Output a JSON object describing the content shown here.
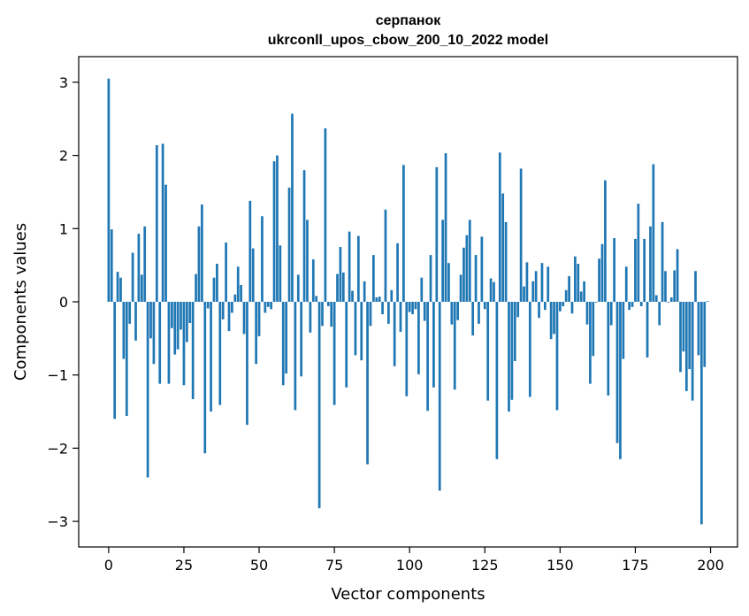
{
  "chart_data": {
    "type": "bar",
    "title_line1": "серпанок",
    "title_line2": "ukrconll_upos_cbow_200_10_2022 model",
    "xlabel": "Vector components",
    "ylabel": "Components values",
    "xlim": [
      -9.95,
      208.95
    ],
    "ylim": [
      -3.35,
      3.35
    ],
    "xticks": [
      0,
      25,
      50,
      75,
      100,
      125,
      150,
      175,
      200
    ],
    "yticks": [
      -3,
      -2,
      -1,
      0,
      1,
      2,
      3
    ],
    "ytick_labels": [
      "−3",
      "−2",
      "−1",
      "0",
      "1",
      "2",
      "3"
    ],
    "bar_color": "#1f77b4",
    "grid": false,
    "values": [
      3.05,
      0.99,
      -1.6,
      0.41,
      0.33,
      -0.78,
      -1.56,
      -0.3,
      0.67,
      -0.53,
      0.93,
      0.37,
      1.03,
      -2.4,
      -0.5,
      -0.85,
      2.14,
      -1.12,
      2.16,
      1.6,
      -1.12,
      -0.36,
      -0.72,
      -0.65,
      -0.38,
      -1.14,
      -0.55,
      -0.29,
      -1.33,
      0.38,
      1.03,
      1.33,
      -2.07,
      -0.09,
      -1.5,
      0.33,
      0.52,
      -1.41,
      -0.24,
      0.81,
      -0.4,
      -0.15,
      0.1,
      0.48,
      0.23,
      -0.44,
      -1.68,
      1.38,
      0.73,
      -0.85,
      -0.47,
      1.17,
      -0.15,
      -0.07,
      -0.1,
      1.92,
      2.0,
      0.77,
      -1.14,
      -0.98,
      1.56,
      2.57,
      -1.48,
      0.37,
      -1.02,
      1.8,
      1.12,
      -0.42,
      0.58,
      0.08,
      -2.82,
      -0.33,
      2.37,
      -0.06,
      -0.34,
      -1.41,
      0.38,
      0.75,
      0.4,
      -1.17,
      0.96,
      0.15,
      -0.73,
      0.9,
      -0.8,
      0.28,
      -2.22,
      -0.33,
      0.64,
      0.06,
      0.07,
      -0.17,
      1.26,
      -0.3,
      0.16,
      -0.88,
      0.8,
      -0.41,
      1.87,
      -1.29,
      -0.14,
      -0.17,
      -0.1,
      -0.99,
      0.33,
      -0.26,
      -1.49,
      0.64,
      -1.17,
      1.84,
      -2.58,
      1.12,
      2.03,
      0.53,
      -0.31,
      -1.2,
      -0.25,
      0.37,
      0.74,
      0.91,
      1.12,
      -0.46,
      0.64,
      -0.3,
      0.89,
      -0.1,
      -1.35,
      0.32,
      0.27,
      -2.15,
      2.04,
      1.48,
      1.09,
      -1.5,
      -1.34,
      -0.81,
      -0.21,
      1.82,
      0.21,
      0.54,
      -1.3,
      0.28,
      0.42,
      -0.22,
      0.53,
      -0.11,
      0.48,
      -0.51,
      -0.44,
      -1.48,
      -0.13,
      -0.06,
      0.16,
      0.35,
      -0.16,
      0.62,
      0.52,
      0.14,
      0.28,
      -0.31,
      -1.12,
      -0.74,
      -0.01,
      0.59,
      0.79,
      1.66,
      -1.28,
      -0.32,
      0.87,
      -1.93,
      -2.15,
      -0.78,
      0.48,
      -0.11,
      -0.07,
      0.86,
      1.34,
      -0.06,
      0.86,
      -0.76,
      1.03,
      1.88,
      0.09,
      -0.32,
      1.09,
      0.42,
      -0.01,
      0.06,
      0.43,
      0.72,
      -0.96,
      -0.68,
      -1.22,
      -0.92,
      -1.35,
      0.42,
      -0.73,
      -3.04,
      -0.89,
      0.01
    ]
  }
}
